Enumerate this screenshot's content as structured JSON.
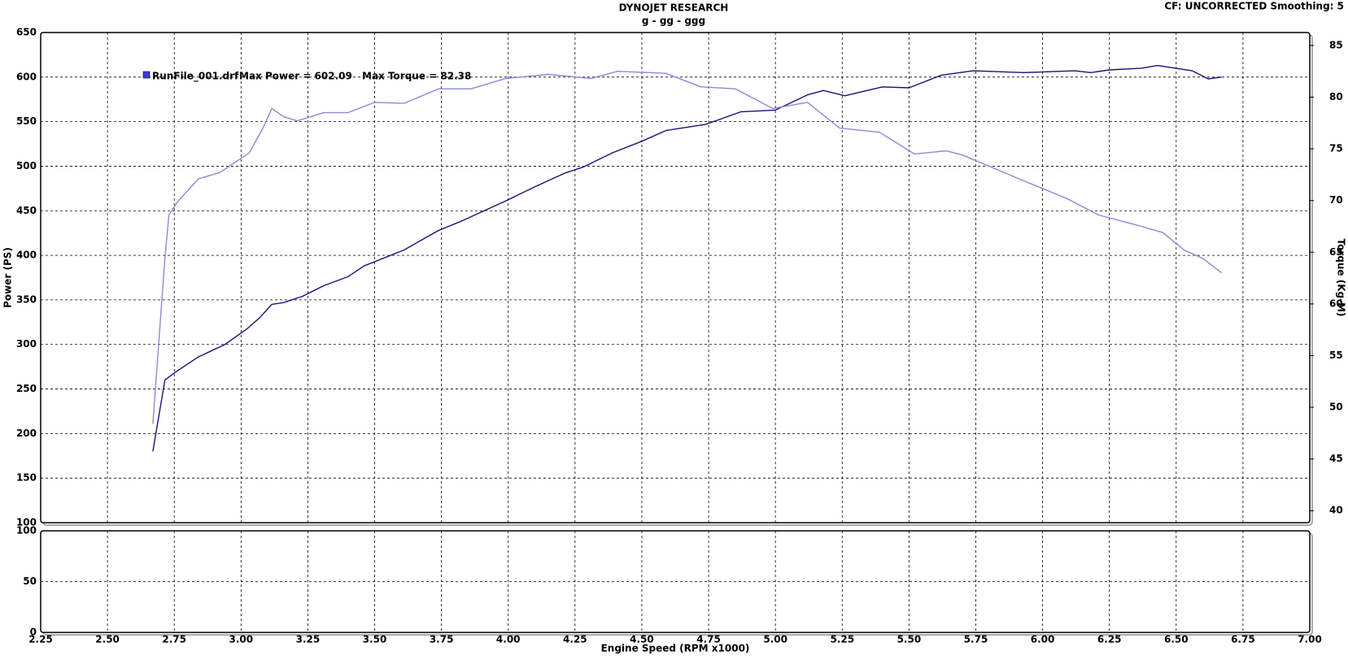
{
  "header": {
    "title": "DYNOJET RESEARCH",
    "subtitle": "g - gg - ggg",
    "status": "CF: UNCORRECTED  Smoothing: 5"
  },
  "chart_data": [
    {
      "type": "line",
      "ylabel": "Power (PS)",
      "y2label": "Torque (Kg-M)",
      "run_name": "RunFile_001.drf",
      "annotations": [
        "Max Power = 602.09",
        "Max Torque = 82.38"
      ],
      "legend_color": "#3a3ae0",
      "xlim": [
        2.25,
        7.0
      ],
      "xticks": [
        2.25,
        2.5,
        2.75,
        3,
        3.25,
        3.5,
        3.75,
        4,
        4.25,
        4.5,
        4.75,
        5,
        5.25,
        5.5,
        5.75,
        6,
        6.25,
        6.5,
        6.75,
        7
      ],
      "ylim": [
        100,
        650
      ],
      "yticks": [
        100,
        150,
        200,
        250,
        300,
        350,
        400,
        450,
        500,
        550,
        600,
        650
      ],
      "y2lim": [
        38.84,
        86.25
      ],
      "y2ticks": [
        40,
        45,
        50,
        55,
        60,
        65,
        70,
        75,
        80,
        85
      ],
      "grid": true,
      "series": [
        {
          "color": "#14147a",
          "x": [
            2.67,
            2.715,
            2.75,
            2.84,
            2.94,
            3.02,
            3.07,
            3.115,
            3.16,
            3.23,
            3.31,
            3.4,
            3.46,
            3.61,
            3.74,
            3.83,
            3.99,
            4.1,
            4.21,
            4.28,
            4.39,
            4.5,
            4.59,
            4.74,
            4.87,
            5.0,
            5.12,
            5.18,
            5.26,
            5.4,
            5.5,
            5.62,
            5.74,
            5.93,
            6.12,
            6.18,
            6.25,
            6.37,
            6.43,
            6.56,
            6.62,
            6.67
          ],
          "values": [
            180,
            260,
            268,
            286,
            300,
            317,
            330,
            345,
            347,
            354,
            366,
            376,
            388,
            406,
            428,
            439,
            461,
            477,
            492,
            499,
            515,
            528,
            540,
            547,
            561,
            563,
            580,
            585,
            579,
            589,
            588,
            602,
            607,
            605,
            607,
            605,
            608,
            610,
            613,
            607,
            598,
            600
          ]
        },
        {
          "color": "#8a8ad8",
          "axis": "y2",
          "x": [
            2.67,
            2.715,
            2.73,
            2.76,
            2.84,
            2.92,
            3.03,
            3.08,
            3.115,
            3.16,
            3.21,
            3.31,
            3.4,
            3.5,
            3.61,
            3.74,
            3.86,
            3.99,
            4.15,
            4.31,
            4.41,
            4.59,
            4.72,
            4.85,
            4.99,
            5.12,
            5.24,
            5.39,
            5.52,
            5.64,
            5.7,
            5.93,
            6.09,
            6.21,
            6.37,
            6.45,
            6.53,
            6.6,
            6.67
          ],
          "values": [
            48.4,
            64.4,
            68.6,
            69.8,
            72.1,
            72.7,
            74.6,
            76.9,
            78.9,
            78.1,
            77.7,
            78.5,
            78.5,
            79.5,
            79.4,
            80.8,
            80.8,
            81.8,
            82.2,
            81.8,
            82.5,
            82.3,
            81.0,
            80.8,
            78.9,
            79.5,
            77.0,
            76.6,
            74.5,
            74.8,
            74.4,
            71.9,
            70.2,
            68.6,
            67.5,
            66.9,
            65.2,
            64.4,
            63.0
          ]
        }
      ]
    },
    {
      "type": "line",
      "xlabel": "Engine Speed (RPM x1000)",
      "xlim": [
        2.25,
        7.0
      ],
      "xticks": [
        {
          "value": 2.25,
          "label": "2.25"
        },
        {
          "value": 2.5,
          "label": "2.50"
        },
        {
          "value": 2.75,
          "label": "2.75"
        },
        {
          "value": 3,
          "label": "3.00"
        },
        {
          "value": 3.25,
          "label": "3.25"
        },
        {
          "value": 3.5,
          "label": "3.50"
        },
        {
          "value": 3.75,
          "label": "3.75"
        },
        {
          "value": 4,
          "label": "4.00"
        },
        {
          "value": 4.25,
          "label": "4.25"
        },
        {
          "value": 4.5,
          "label": "4.50"
        },
        {
          "value": 4.75,
          "label": "4.75"
        },
        {
          "value": 5,
          "label": "5.00"
        },
        {
          "value": 5.25,
          "label": "5.25"
        },
        {
          "value": 5.5,
          "label": "5.50"
        },
        {
          "value": 5.75,
          "label": "5.75"
        },
        {
          "value": 6,
          "label": "6.00"
        },
        {
          "value": 6.25,
          "label": "6.25"
        },
        {
          "value": 6.5,
          "label": "6.50"
        },
        {
          "value": 6.75,
          "label": "6.75"
        },
        {
          "value": 7,
          "label": "7.00"
        }
      ],
      "ylim": [
        0,
        100
      ],
      "yticks": [
        0,
        50,
        100
      ],
      "grid": true,
      "series": []
    }
  ]
}
